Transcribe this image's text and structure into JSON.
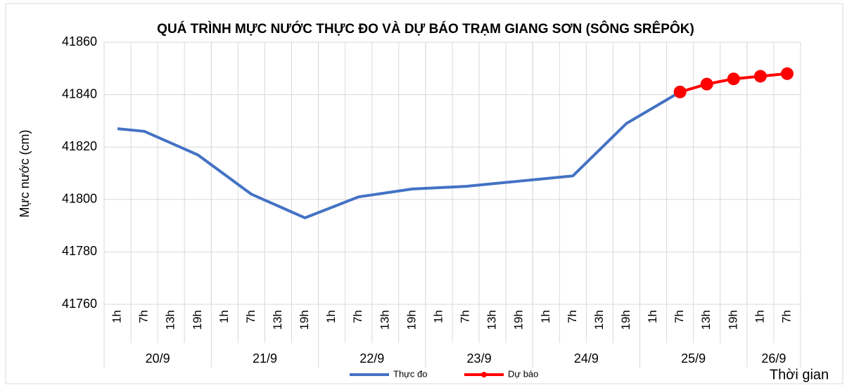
{
  "chart_data": {
    "type": "line",
    "title": "QUÁ TRÌNH MỰC NƯỚC THỰC ĐO VÀ DỰ BÁO TRẠM GIANG SƠN (SÔNG SRÊPÔK)",
    "y_label": "Mực nước (cm)",
    "x_label": "Thời gian",
    "groups": [
      {
        "label": "20/9",
        "hours": [
          "1h",
          "7h",
          "13h",
          "19h"
        ]
      },
      {
        "label": "21/9",
        "hours": [
          "1h",
          "7h",
          "13h",
          "19h"
        ]
      },
      {
        "label": "22/9",
        "hours": [
          "1h",
          "7h",
          "13h",
          "19h"
        ]
      },
      {
        "label": "23/9",
        "hours": [
          "1h",
          "7h",
          "13h",
          "19h"
        ]
      },
      {
        "label": "24/9",
        "hours": [
          "1h",
          "7h",
          "13h",
          "19h"
        ]
      },
      {
        "label": "25/9",
        "hours": [
          "1h",
          "7h",
          "13h",
          "19h"
        ]
      },
      {
        "label": "26/9",
        "hours": [
          "1h",
          "7h"
        ]
      }
    ],
    "series": [
      {
        "name": "Thực đo",
        "color": "#4472c4",
        "markers": false,
        "values": [
          41827,
          41826,
          41821.5,
          41817,
          41809.5,
          41802,
          41797.5,
          41793,
          41797,
          41801,
          41802.5,
          41804,
          41804.5,
          41805,
          41806,
          41807,
          41808,
          41809,
          41819,
          41829,
          41835,
          41841,
          null,
          null,
          null,
          null
        ]
      },
      {
        "name": "Dự báo",
        "color": "#ff0000",
        "markers": true,
        "values": [
          null,
          null,
          null,
          null,
          null,
          null,
          null,
          null,
          null,
          null,
          null,
          null,
          null,
          null,
          null,
          null,
          null,
          null,
          null,
          null,
          null,
          41841,
          41844,
          41846,
          41847,
          41848
        ]
      }
    ],
    "ylim": [
      41760,
      41860
    ],
    "yticks": [
      41760,
      41780,
      41800,
      41820,
      41840,
      41860
    ],
    "grid": true
  }
}
